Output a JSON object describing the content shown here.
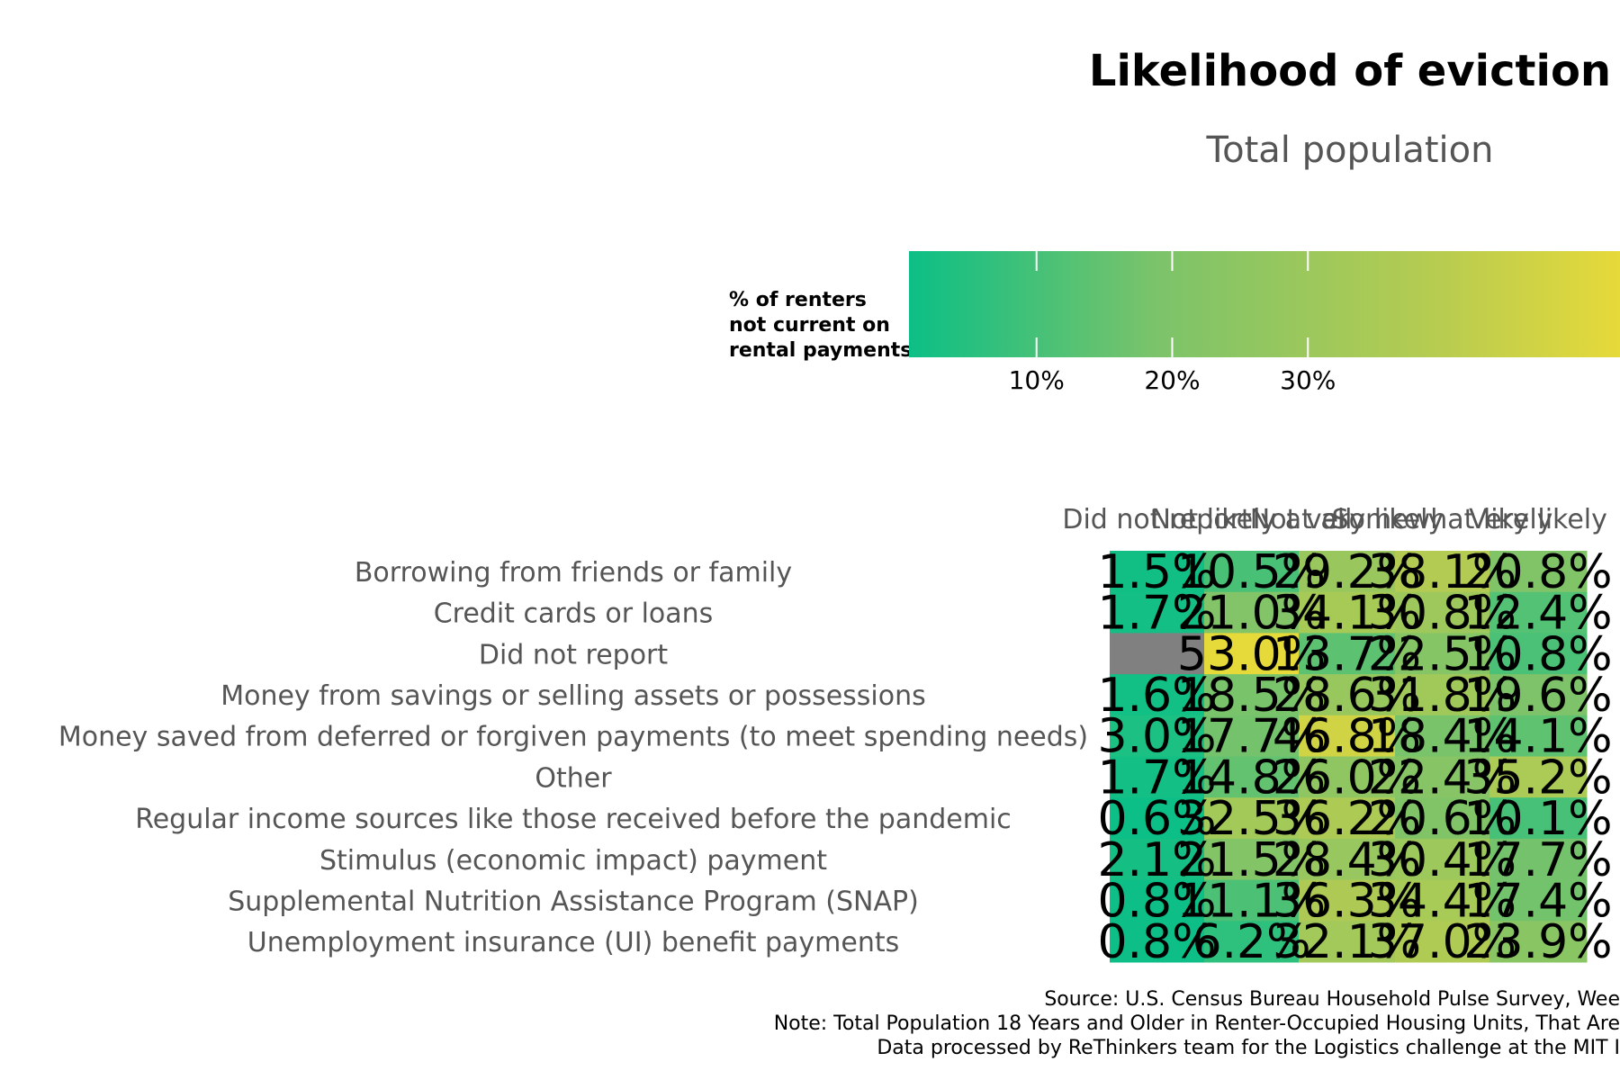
{
  "chart_data": {
    "type": "heatmap",
    "title": "Likelihood of eviction",
    "subtitle": "Total population",
    "legend": {
      "title_lines": [
        "% of renters",
        "not current on",
        "rental payments"
      ],
      "ticks": [
        "10%",
        "20%",
        "30%"
      ],
      "tick_values": [
        10,
        20,
        30
      ],
      "min": 0.6,
      "max": 53.0,
      "colors": [
        "#0cbf86",
        "#7cc36a",
        "#b8cc50",
        "#e6d93a"
      ]
    },
    "columns": [
      "Did not report",
      "Not likely at all",
      "Not very likely",
      "Somewhat likely",
      "Very likely"
    ],
    "rows": [
      "Borrowing from friends or family",
      "Credit cards or loans",
      "Did not report",
      "Money from savings or selling assets or possessions",
      "Money saved from deferred or forgiven payments (to meet spending needs)",
      "Other",
      "Regular income sources like those received before the pandemic",
      "Stimulus (economic impact) payment",
      "Supplemental Nutrition Assistance Program (SNAP)",
      "Unemployment insurance (UI) benefit payments"
    ],
    "values": [
      [
        1.5,
        10.5,
        29.2,
        38.1,
        20.8
      ],
      [
        1.7,
        21.0,
        34.1,
        30.8,
        12.4
      ],
      [
        null,
        53.0,
        13.7,
        22.5,
        10.8
      ],
      [
        1.6,
        18.5,
        28.6,
        31.8,
        19.6
      ],
      [
        3.0,
        17.7,
        46.8,
        18.4,
        14.1
      ],
      [
        1.7,
        14.8,
        26.0,
        22.4,
        35.2
      ],
      [
        0.6,
        32.5,
        36.2,
        20.6,
        10.1
      ],
      [
        2.1,
        21.5,
        28.4,
        30.4,
        17.7
      ],
      [
        0.8,
        11.1,
        36.3,
        34.4,
        17.4
      ],
      [
        0.8,
        6.2,
        32.1,
        37.0,
        23.9
      ]
    ],
    "labels": [
      [
        "1.5%",
        "10.5%",
        "29.2%",
        "38.1%",
        "20.8%"
      ],
      [
        "1.7%",
        "21.0%",
        "34.1%",
        "30.8%",
        "12.4%"
      ],
      [
        "",
        "53.0%",
        "13.7%",
        "22.5%",
        "10.8%"
      ],
      [
        "1.6%",
        "18.5%",
        "28.6%",
        "31.8%",
        "19.6%"
      ],
      [
        "3.0%",
        "17.7%",
        "46.8%",
        "18.4%",
        "14.1%"
      ],
      [
        "1.7%",
        "14.8%",
        "26.0%",
        "22.4%",
        "35.2%"
      ],
      [
        "0.6%",
        "32.5%",
        "36.2%",
        "20.6%",
        "10.1%"
      ],
      [
        "2.1%",
        "21.5%",
        "28.4%",
        "30.4%",
        "17.7%"
      ],
      [
        "0.8%",
        "11.1%",
        "36.3%",
        "34.4%",
        "17.4%"
      ],
      [
        "0.8%",
        "6.2%",
        "32.1%",
        "37.0%",
        "23.9%"
      ]
    ],
    "missing_color": "#808080",
    "text_color": "#000000",
    "caption_lines": [
      "Source: U.S. Census Bureau Household Pulse Survey, Wee",
      "Note: Total Population 18 Years and Older in Renter-Occupied Housing Units, That Are",
      "Data processed by ReThinkers team for the Logistics challenge at the MIT I"
    ]
  }
}
